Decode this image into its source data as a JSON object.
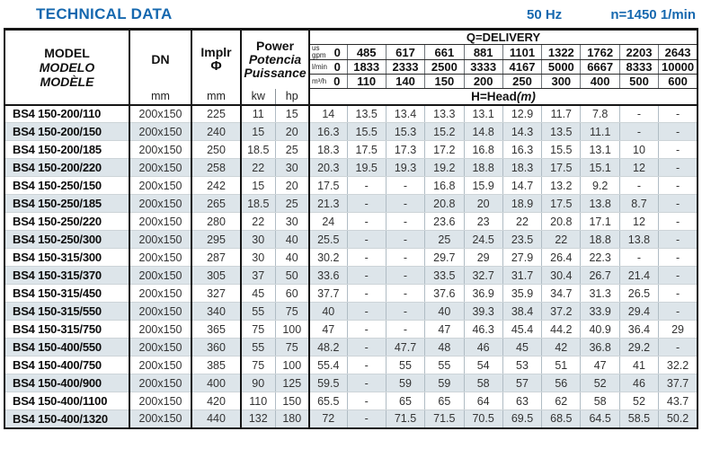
{
  "page": {
    "title": "TECHNICAL DATA",
    "frequency": "50 Hz",
    "speed": "n=1450 1/min"
  },
  "colors": {
    "accent": "#1668af",
    "stripe": "#dde5ea"
  },
  "table": {
    "header": {
      "model_lines": [
        "MODEL",
        "MODELO",
        "MODÈLE"
      ],
      "dn_label": "DN",
      "implr_label": "Implr",
      "phi_symbol": "Φ",
      "power_lines": [
        "Power",
        "Potencia",
        "Puissance"
      ],
      "mm_unit": "mm",
      "kw_unit": "kw",
      "hp_unit": "hp",
      "delivery_title": "Q=DELIVERY",
      "head_title": "H=Head",
      "head_unit": "(m)",
      "unit_rows": [
        {
          "label": "us gpm",
          "values": [
            "0",
            "485",
            "617",
            "661",
            "881",
            "1101",
            "1322",
            "1762",
            "2203",
            "2643"
          ]
        },
        {
          "label": "l/min",
          "values": [
            "0",
            "1833",
            "2333",
            "2500",
            "3333",
            "4167",
            "5000",
            "6667",
            "8333",
            "10000"
          ]
        },
        {
          "label": "m³/h",
          "values": [
            "0",
            "110",
            "140",
            "150",
            "200",
            "250",
            "300",
            "400",
            "500",
            "600"
          ]
        }
      ]
    },
    "rows": [
      {
        "model": "BS4 150-200/110",
        "dn": "200x150",
        "implr": "225",
        "kw": "11",
        "hp": "15",
        "head": [
          "14",
          "13.5",
          "13.4",
          "13.3",
          "13.1",
          "12.9",
          "11.7",
          "7.8",
          "-",
          "-"
        ]
      },
      {
        "model": "BS4 150-200/150",
        "dn": "200x150",
        "implr": "240",
        "kw": "15",
        "hp": "20",
        "head": [
          "16.3",
          "15.5",
          "15.3",
          "15.2",
          "14.8",
          "14.3",
          "13.5",
          "11.1",
          "-",
          "-"
        ]
      },
      {
        "model": "BS4 150-200/185",
        "dn": "200x150",
        "implr": "250",
        "kw": "18.5",
        "hp": "25",
        "head": [
          "18.3",
          "17.5",
          "17.3",
          "17.2",
          "16.8",
          "16.3",
          "15.5",
          "13.1",
          "10",
          "-"
        ]
      },
      {
        "model": "BS4 150-200/220",
        "dn": "200x150",
        "implr": "258",
        "kw": "22",
        "hp": "30",
        "head": [
          "20.3",
          "19.5",
          "19.3",
          "19.2",
          "18.8",
          "18.3",
          "17.5",
          "15.1",
          "12",
          "-"
        ]
      },
      {
        "model": "BS4 150-250/150",
        "dn": "200x150",
        "implr": "242",
        "kw": "15",
        "hp": "20",
        "head": [
          "17.5",
          "-",
          "-",
          "16.8",
          "15.9",
          "14.7",
          "13.2",
          "9.2",
          "-",
          "-"
        ]
      },
      {
        "model": "BS4 150-250/185",
        "dn": "200x150",
        "implr": "265",
        "kw": "18.5",
        "hp": "25",
        "head": [
          "21.3",
          "-",
          "-",
          "20.8",
          "20",
          "18.9",
          "17.5",
          "13.8",
          "8.7",
          "-"
        ]
      },
      {
        "model": "BS4 150-250/220",
        "dn": "200x150",
        "implr": "280",
        "kw": "22",
        "hp": "30",
        "head": [
          "24",
          "-",
          "-",
          "23.6",
          "23",
          "22",
          "20.8",
          "17.1",
          "12",
          "-"
        ]
      },
      {
        "model": "BS4 150-250/300",
        "dn": "200x150",
        "implr": "295",
        "kw": "30",
        "hp": "40",
        "head": [
          "25.5",
          "-",
          "-",
          "25",
          "24.5",
          "23.5",
          "22",
          "18.8",
          "13.8",
          "-"
        ]
      },
      {
        "model": "BS4 150-315/300",
        "dn": "200x150",
        "implr": "287",
        "kw": "30",
        "hp": "40",
        "head": [
          "30.2",
          "-",
          "-",
          "29.7",
          "29",
          "27.9",
          "26.4",
          "22.3",
          "-",
          "-"
        ]
      },
      {
        "model": "BS4 150-315/370",
        "dn": "200x150",
        "implr": "305",
        "kw": "37",
        "hp": "50",
        "head": [
          "33.6",
          "-",
          "-",
          "33.5",
          "32.7",
          "31.7",
          "30.4",
          "26.7",
          "21.4",
          "-"
        ]
      },
      {
        "model": "BS4 150-315/450",
        "dn": "200x150",
        "implr": "327",
        "kw": "45",
        "hp": "60",
        "head": [
          "37.7",
          "-",
          "-",
          "37.6",
          "36.9",
          "35.9",
          "34.7",
          "31.3",
          "26.5",
          "-"
        ]
      },
      {
        "model": "BS4 150-315/550",
        "dn": "200x150",
        "implr": "340",
        "kw": "55",
        "hp": "75",
        "head": [
          "40",
          "-",
          "-",
          "40",
          "39.3",
          "38.4",
          "37.2",
          "33.9",
          "29.4",
          "-"
        ]
      },
      {
        "model": "BS4 150-315/750",
        "dn": "200x150",
        "implr": "365",
        "kw": "75",
        "hp": "100",
        "head": [
          "47",
          "-",
          "-",
          "47",
          "46.3",
          "45.4",
          "44.2",
          "40.9",
          "36.4",
          "29"
        ]
      },
      {
        "model": "BS4 150-400/550",
        "dn": "200x150",
        "implr": "360",
        "kw": "55",
        "hp": "75",
        "head": [
          "48.2",
          "-",
          "47.7",
          "48",
          "46",
          "45",
          "42",
          "36.8",
          "29.2",
          "-"
        ]
      },
      {
        "model": "BS4 150-400/750",
        "dn": "200x150",
        "implr": "385",
        "kw": "75",
        "hp": "100",
        "head": [
          "55.4",
          "-",
          "55",
          "55",
          "54",
          "53",
          "51",
          "47",
          "41",
          "32.2"
        ]
      },
      {
        "model": "BS4 150-400/900",
        "dn": "200x150",
        "implr": "400",
        "kw": "90",
        "hp": "125",
        "head": [
          "59.5",
          "-",
          "59",
          "59",
          "58",
          "57",
          "56",
          "52",
          "46",
          "37.7"
        ]
      },
      {
        "model": "BS4 150-400/1100",
        "dn": "200x150",
        "implr": "420",
        "kw": "110",
        "hp": "150",
        "head": [
          "65.5",
          "-",
          "65",
          "65",
          "64",
          "63",
          "62",
          "58",
          "52",
          "43.7"
        ]
      },
      {
        "model": "BS4 150-400/1320",
        "dn": "200x150",
        "implr": "440",
        "kw": "132",
        "hp": "180",
        "head": [
          "72",
          "-",
          "71.5",
          "71.5",
          "70.5",
          "69.5",
          "68.5",
          "64.5",
          "58.5",
          "50.2"
        ]
      }
    ]
  }
}
